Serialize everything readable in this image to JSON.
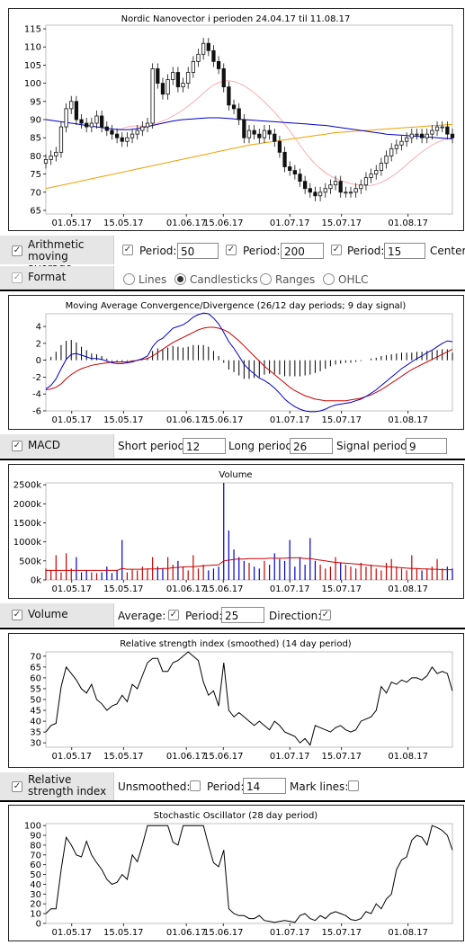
{
  "colors": {
    "candle": "#111111",
    "ma50": "#0000cc",
    "ma200": "#f0a000",
    "ma15": "#ff9999",
    "macd_line": "#0000cc",
    "signal_line": "#cc0000",
    "vol_up": "#cc0000",
    "vol_down": "#0000cc",
    "vol_avg": "#cc0000",
    "rsi": "#000000",
    "stoch": "#000000"
  },
  "x_ticks": [
    "01.05.17",
    "15.05.17",
    "01.06.17",
    "15.06.17",
    "01.07.17",
    "15.07.17",
    "01.08.17"
  ],
  "price_chart": {
    "title": "Nordic Nanovector i perioden 24.04.17 til 11.08.17",
    "y_ticks": [
      "115",
      "110",
      "105",
      "100",
      "95",
      "90",
      "85",
      "80",
      "75",
      "70",
      "65"
    ],
    "ylim": [
      64,
      116
    ]
  },
  "ma_controls": {
    "label": "Arithmetic moving average",
    "period_label": "Period:",
    "periods": [
      "50",
      "200",
      "15"
    ],
    "centered_label": "Centere",
    "check": "✓"
  },
  "format_controls": {
    "label": "Format",
    "options": [
      "Lines",
      "Candlesticks",
      "Ranges",
      "OHLC"
    ],
    "selected": "Candlesticks"
  },
  "macd_chart": {
    "title": "Moving Average Convergence/Divergence (26/12 day periods; 9 day signal)",
    "y_ticks": [
      "4",
      "2",
      "0",
      "-2",
      "-4",
      "-6"
    ],
    "ylim": [
      -6,
      5.5
    ]
  },
  "macd_controls": {
    "label": "MACD",
    "short_label": "Short period:",
    "short_value": "12",
    "long_label": "Long period:",
    "long_value": "26",
    "signal_label": "Signal period:",
    "signal_value": "9"
  },
  "volume_chart": {
    "title": "Volume",
    "y_ticks": [
      "2500k",
      "2000k",
      "1500k",
      "1000k",
      "500k",
      "0k"
    ],
    "ylim": [
      0,
      2550
    ]
  },
  "volume_controls": {
    "label": "Volume",
    "average_label": "Average:",
    "period_label": "Period:",
    "period_value": "25",
    "direction_label": "Direction:"
  },
  "rsi_chart": {
    "title": "Relative strength index (smoothed) (14 day period)",
    "y_ticks": [
      "70",
      "65",
      "60",
      "55",
      "50",
      "45",
      "40",
      "35",
      "30"
    ],
    "ylim": [
      28,
      72
    ]
  },
  "rsi_controls": {
    "label": "Relative strength index",
    "unsmoothed_label": "Unsmoothed:",
    "period_label": "Period:",
    "period_value": "14",
    "marklines_label": "Mark lines:"
  },
  "stoch_chart": {
    "title": "Stochastic Oscillator (28 day period)",
    "y_ticks": [
      "100",
      "90",
      "80",
      "70",
      "60",
      "50",
      "40",
      "30",
      "20",
      "10",
      "0"
    ],
    "ylim": [
      0,
      102
    ]
  },
  "chart_data": [
    {
      "type": "candlestick",
      "title": "Nordic Nanovector i perioden 24.04.17 til 11.08.17",
      "x_ticks": [
        "01.05.17",
        "15.05.17",
        "01.06.17",
        "15.06.17",
        "01.07.17",
        "15.07.17",
        "01.08.17"
      ],
      "ylim": [
        64,
        116
      ],
      "close": [
        79,
        80,
        81,
        88,
        93,
        95,
        90,
        89,
        88,
        89,
        91,
        88,
        87,
        86,
        85,
        84,
        85,
        86,
        87,
        88,
        89,
        104,
        100,
        97,
        101,
        103,
        99,
        100,
        103,
        106,
        108,
        111,
        109,
        106,
        104,
        99,
        94,
        93,
        90,
        85,
        87,
        86,
        85,
        87,
        86,
        84,
        81,
        77,
        76,
        75,
        73,
        71,
        70,
        69,
        70,
        71,
        72,
        73,
        70,
        70,
        70,
        71,
        72,
        74,
        75,
        76,
        78,
        80,
        82,
        83,
        84,
        85,
        86,
        86,
        85,
        86,
        87,
        88,
        88,
        86,
        85
      ],
      "ma50": [
        90,
        89.8,
        89.6,
        89.4,
        89.2,
        89,
        88.8,
        88.6,
        88.4,
        88.2,
        88,
        87.8,
        87.6,
        87.4,
        87.3,
        87.2,
        87.2,
        87.3,
        87.5,
        87.8,
        88.1,
        88.4,
        88.7,
        89,
        89.3,
        89.6,
        89.8,
        90,
        90.1,
        90.2,
        90.3,
        90.4,
        90.5,
        90.5,
        90.5,
        90.4,
        90.3,
        90.2,
        90.1,
        90,
        89.9,
        89.8,
        89.7,
        89.6,
        89.5,
        89.4,
        89.3,
        89.2,
        89.1,
        89,
        88.9,
        88.8,
        88.7,
        88.6,
        88.5,
        88.4,
        88.2,
        88,
        87.8,
        87.6,
        87.4,
        87.2,
        87,
        86.8,
        86.6,
        86.4,
        86.2,
        86,
        85.9,
        85.8,
        85.7,
        85.6,
        85.5,
        85.4,
        85.3,
        85.2,
        85.1,
        85,
        84.9,
        84.8,
        84.7
      ],
      "ma200": [
        71,
        71.3,
        71.6,
        71.9,
        72.2,
        72.5,
        72.8,
        73.1,
        73.4,
        73.7,
        74,
        74.3,
        74.6,
        74.9,
        75.2,
        75.5,
        75.8,
        76.1,
        76.4,
        76.7,
        77,
        77.3,
        77.6,
        77.9,
        78.2,
        78.5,
        78.8,
        79.1,
        79.4,
        79.7,
        80,
        80.3,
        80.6,
        80.9,
        81.2,
        81.5,
        81.8,
        82.1,
        82.4,
        82.7,
        83,
        83.2,
        83.4,
        83.6,
        83.8,
        84,
        84.2,
        84.4,
        84.6,
        84.8,
        85,
        85.2,
        85.4,
        85.6,
        85.8,
        86,
        86.2,
        86.4,
        86.5,
        86.6,
        86.7,
        86.8,
        86.9,
        87,
        87.1,
        87.2,
        87.3,
        87.4,
        87.5,
        87.6,
        87.7,
        87.8,
        87.9,
        88,
        88.1,
        88.2,
        88.3,
        88.4,
        88.5,
        88.6,
        88.7
      ],
      "ma15": [
        null,
        null,
        null,
        null,
        null,
        null,
        null,
        null,
        null,
        null,
        null,
        null,
        null,
        null,
        87,
        87.5,
        88,
        88.2,
        88.3,
        88.2,
        88.1,
        88.6,
        89.1,
        89.6,
        90.2,
        91,
        91.8,
        92.7,
        93.7,
        94.8,
        96,
        97.3,
        98.5,
        99.5,
        100.2,
        100.6,
        100.7,
        100.5,
        100,
        99.3,
        98.4,
        97.4,
        96.2,
        94.9,
        93.5,
        92,
        90.4,
        88.7,
        86.9,
        85,
        83,
        81,
        79.3,
        77.8,
        76.5,
        75.4,
        74.5,
        73.8,
        73.2,
        72.8,
        72.4,
        72.1,
        71.9,
        71.8,
        71.9,
        72.2,
        72.7,
        73.4,
        74.3,
        75.3,
        76.4,
        77.6,
        78.8,
        80,
        81.1,
        82.1,
        83,
        83.7,
        84.3,
        84.7,
        85
      ]
    },
    {
      "type": "line+bar",
      "title": "Moving Average Convergence/Divergence (26/12 day periods; 9 day signal)",
      "ylim": [
        -6,
        5.5
      ],
      "macd": [
        -3.4,
        -3,
        -2.2,
        -1,
        0.1,
        0.7,
        0.8,
        0.6,
        0.4,
        0.2,
        0.2,
        0.1,
        -0.1,
        -0.3,
        -0.4,
        -0.4,
        -0.3,
        -0.2,
        0,
        0.2,
        0.5,
        1.6,
        2.3,
        2.6,
        3.2,
        3.8,
        4,
        4.2,
        4.6,
        5.1,
        5.4,
        5.6,
        5.5,
        5,
        4.3,
        3.3,
        2.2,
        1.4,
        0.5,
        -0.5,
        -1.1,
        -1.6,
        -2.1,
        -2.4,
        -2.8,
        -3.3,
        -3.9,
        -4.6,
        -5.1,
        -5.5,
        -5.8,
        -6,
        -6.1,
        -6.1,
        -6,
        -5.8,
        -5.5,
        -5.3,
        -5.2,
        -5.1,
        -5,
        -4.8,
        -4.6,
        -4.3,
        -3.9,
        -3.5,
        -3,
        -2.5,
        -2,
        -1.5,
        -1,
        -0.6,
        -0.2,
        0.2,
        0.5,
        0.9,
        1.2,
        1.6,
        2,
        2.3,
        2.2
      ],
      "signal": [
        -3.5,
        -3.4,
        -3.2,
        -2.8,
        -2.2,
        -1.7,
        -1.3,
        -1,
        -0.8,
        -0.6,
        -0.5,
        -0.4,
        -0.3,
        -0.2,
        -0.2,
        -0.2,
        -0.2,
        -0.1,
        0,
        0.1,
        0.2,
        0.5,
        0.9,
        1.3,
        1.7,
        2.1,
        2.4,
        2.7,
        3,
        3.3,
        3.6,
        3.8,
        3.9,
        3.9,
        3.8,
        3.6,
        3.3,
        2.8,
        2.3,
        1.7,
        1.1,
        0.5,
        -0.1,
        -0.7,
        -1.2,
        -1.7,
        -2.2,
        -2.7,
        -3.2,
        -3.6,
        -3.9,
        -4.2,
        -4.4,
        -4.6,
        -4.7,
        -4.8,
        -4.8,
        -4.8,
        -4.8,
        -4.8,
        -4.7,
        -4.6,
        -4.5,
        -4.3,
        -4.1,
        -3.8,
        -3.5,
        -3.1,
        -2.7,
        -2.3,
        -1.9,
        -1.5,
        -1.1,
        -0.8,
        -0.5,
        -0.2,
        0.1,
        0.4,
        0.7,
        1,
        1.3
      ]
    },
    {
      "type": "bar",
      "title": "Volume",
      "ylim": [
        0,
        2550
      ],
      "volume": [
        300,
        250,
        650,
        200,
        700,
        300,
        600,
        200,
        250,
        200,
        180,
        200,
        350,
        180,
        250,
        1050,
        200,
        280,
        250,
        350,
        300,
        600,
        350,
        300,
        600,
        400,
        500,
        350,
        250,
        650,
        300,
        400,
        250,
        300,
        350,
        2550,
        1300,
        800,
        600,
        500,
        450,
        350,
        300,
        500,
        400,
        700,
        550,
        500,
        1050,
        350,
        600,
        400,
        1100,
        500,
        400,
        300,
        350,
        600,
        450,
        400,
        350,
        300,
        450,
        350,
        400,
        300,
        250,
        450,
        550,
        350,
        300,
        250,
        650,
        300,
        250,
        300,
        350,
        550,
        300,
        350,
        300
      ],
      "vol_avg": [
        250,
        250,
        250,
        250,
        250,
        250,
        250,
        250,
        250,
        250,
        250,
        250,
        250,
        250,
        250,
        300,
        280,
        280,
        280,
        280,
        290,
        290,
        290,
        300,
        300,
        320,
        330,
        340,
        350,
        350,
        360,
        370,
        380,
        390,
        400,
        500,
        520,
        540,
        550,
        550,
        560,
        560,
        560,
        560,
        570,
        570,
        570,
        570,
        580,
        580,
        580,
        560,
        560,
        540,
        520,
        500,
        480,
        460,
        450,
        440,
        430,
        420,
        410,
        400,
        380,
        370,
        360,
        350,
        340,
        330,
        320,
        310,
        300,
        300,
        290,
        290,
        280,
        280,
        270,
        270,
        270
      ]
    },
    {
      "type": "line",
      "title": "Relative strength index (smoothed) (14 day period)",
      "ylim": [
        28,
        72
      ],
      "rsi": [
        35,
        38,
        39,
        56,
        65,
        62,
        59,
        55,
        53,
        57,
        50,
        48,
        45,
        47,
        48,
        52,
        49,
        57,
        55,
        61,
        67,
        69,
        69,
        63,
        63,
        67,
        68,
        70,
        72,
        70,
        68,
        58,
        52,
        54,
        47,
        67,
        45,
        42,
        44,
        42,
        40,
        38,
        40,
        38,
        36,
        40,
        38,
        35,
        34,
        33,
        30,
        32,
        29,
        38,
        37,
        36,
        35,
        37,
        38,
        36,
        35,
        36,
        40,
        41,
        42,
        45,
        56,
        53,
        58,
        57,
        59,
        58,
        60,
        60,
        59,
        61,
        65,
        62,
        63,
        62,
        54
      ]
    },
    {
      "type": "line",
      "title": "Stochastic Oscillator (28 day period)",
      "ylim": [
        0,
        102
      ],
      "stoch": [
        10,
        15,
        15,
        55,
        88,
        80,
        70,
        68,
        84,
        70,
        62,
        55,
        45,
        40,
        42,
        50,
        45,
        70,
        63,
        80,
        100,
        100,
        100,
        100,
        100,
        83,
        80,
        100,
        100,
        100,
        100,
        100,
        80,
        62,
        58,
        75,
        15,
        10,
        8,
        8,
        5,
        5,
        8,
        3,
        2,
        1,
        2,
        3,
        2,
        1,
        8,
        10,
        5,
        3,
        8,
        5,
        10,
        12,
        10,
        8,
        4,
        3,
        5,
        12,
        10,
        20,
        15,
        25,
        30,
        55,
        65,
        68,
        85,
        90,
        88,
        80,
        100,
        98,
        95,
        90,
        75
      ]
    }
  ]
}
